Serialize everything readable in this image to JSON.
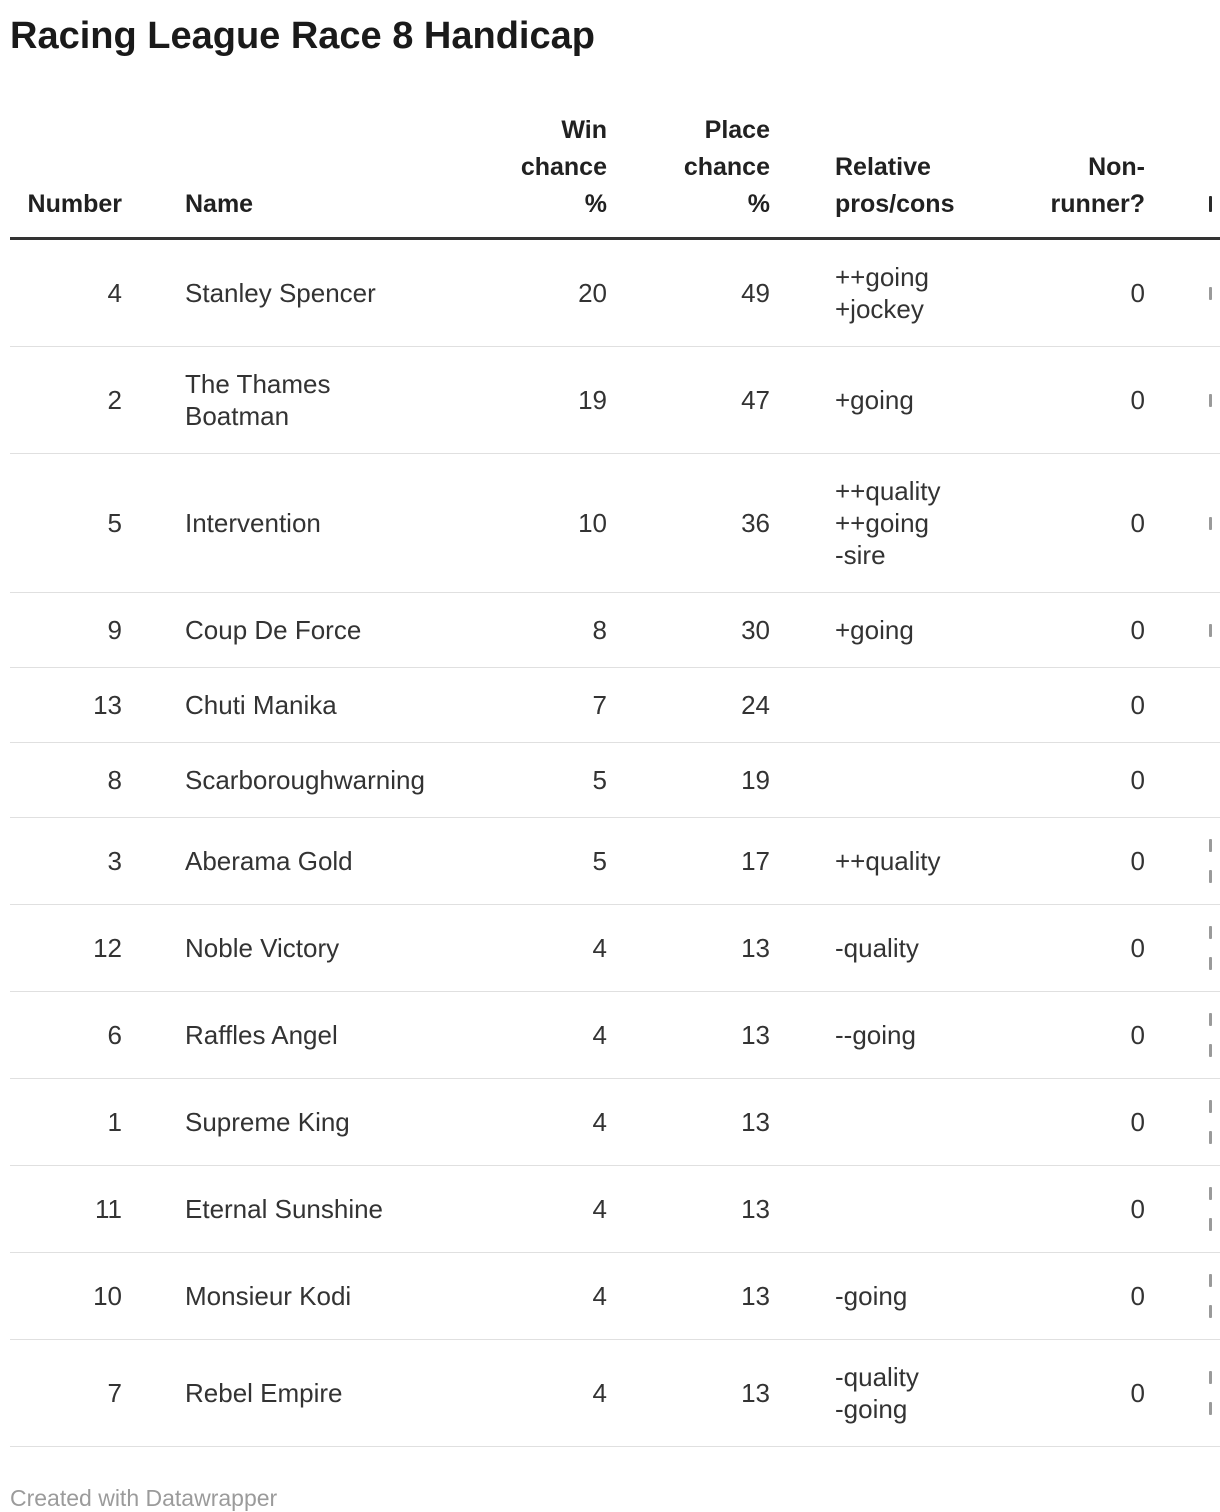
{
  "title": "Racing League Race 8 Handicap",
  "chart_data": {
    "type": "table",
    "title": "Racing League Race 8 Handicap",
    "columns": {
      "number": "Number",
      "name": "Name",
      "win_chance_pct": [
        "Win",
        "chance",
        "%"
      ],
      "place_chance_pct": [
        "Place",
        "chance",
        "%"
      ],
      "pros_cons": [
        "Relative",
        "pros/cons"
      ],
      "non_runner": [
        "Non-",
        "runner?"
      ]
    },
    "rows": [
      {
        "number": 4,
        "name": "Stanley Spencer",
        "win_pct": 20,
        "place_pct": 49,
        "pros": [
          "++going",
          "+jockey"
        ],
        "non_runner": 0
      },
      {
        "number": 2,
        "name": "The Thames Boatman",
        "win_pct": 19,
        "place_pct": 47,
        "pros": [
          "+going"
        ],
        "non_runner": 0
      },
      {
        "number": 5,
        "name": "Intervention",
        "win_pct": 10,
        "place_pct": 36,
        "pros": [
          "++quality",
          "++going",
          "-sire"
        ],
        "non_runner": 0
      },
      {
        "number": 9,
        "name": "Coup De Force",
        "win_pct": 8,
        "place_pct": 30,
        "pros": [
          "+going"
        ],
        "non_runner": 0
      },
      {
        "number": 13,
        "name": "Chuti Manika",
        "win_pct": 7,
        "place_pct": 24,
        "pros": [],
        "non_runner": 0
      },
      {
        "number": 8,
        "name": "Scarboroughwarning",
        "win_pct": 5,
        "place_pct": 19,
        "pros": [],
        "non_runner": 0
      },
      {
        "number": 3,
        "name": "Aberama Gold",
        "win_pct": 5,
        "place_pct": 17,
        "pros": [
          "++quality"
        ],
        "non_runner": 0
      },
      {
        "number": 12,
        "name": "Noble Victory",
        "win_pct": 4,
        "place_pct": 13,
        "pros": [
          "-quality"
        ],
        "non_runner": 0
      },
      {
        "number": 6,
        "name": "Raffles Angel",
        "win_pct": 4,
        "place_pct": 13,
        "pros": [
          "--going"
        ],
        "non_runner": 0
      },
      {
        "number": 1,
        "name": "Supreme King",
        "win_pct": 4,
        "place_pct": 13,
        "pros": [],
        "non_runner": 0
      },
      {
        "number": 11,
        "name": "Eternal Sunshine",
        "win_pct": 4,
        "place_pct": 13,
        "pros": [],
        "non_runner": 0
      },
      {
        "number": 10,
        "name": "Monsieur Kodi",
        "win_pct": 4,
        "place_pct": 13,
        "pros": [
          "-going"
        ],
        "non_runner": 0
      },
      {
        "number": 7,
        "name": "Rebel Empire",
        "win_pct": 4,
        "place_pct": 13,
        "pros": [
          "-quality",
          "-going"
        ],
        "non_runner": 0
      }
    ],
    "layout_hints": {
      "truncated_last_column": true,
      "header_fragment_lines": 1,
      "visible_fragment_lines_per_row": [
        1,
        1,
        1,
        1,
        0,
        0,
        2,
        2,
        2,
        2,
        2,
        2,
        2
      ]
    }
  },
  "footer": {
    "prefix": "Created with ",
    "link_label": "Datawrapper"
  },
  "colors": {
    "title_text": "#1a1a1a",
    "header_text": "#212121",
    "body_text": "#333333",
    "header_border": "#333333",
    "row_border": "#e0e0e0",
    "footer_text": "#9b9b9b",
    "background": "#ffffff"
  }
}
